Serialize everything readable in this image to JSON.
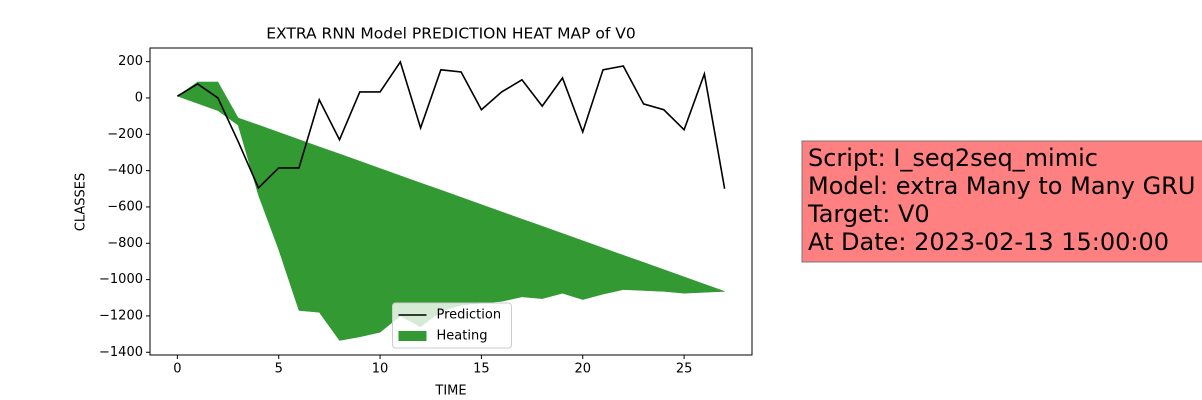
{
  "chart_data": {
    "type": "line_band",
    "title": "EXTRA RNN Model PREDICTION HEAT MAP of V0",
    "xlabel": "TIME",
    "ylabel": "CLASSES",
    "x": [
      0,
      1,
      2,
      3,
      4,
      5,
      6,
      7,
      8,
      9,
      10,
      11,
      12,
      13,
      14,
      15,
      16,
      17,
      18,
      19,
      20,
      21,
      22,
      23,
      24,
      25,
      26,
      27
    ],
    "series": [
      {
        "name": "Prediction",
        "color": "#000000",
        "values": [
          10,
          77,
          0,
          -240,
          -495,
          -385,
          -385,
          -10,
          -230,
          33,
          33,
          198,
          -165,
          155,
          143,
          -65,
          33,
          100,
          -45,
          110,
          -187,
          155,
          176,
          -33,
          -65,
          -175,
          132,
          -500
        ]
      },
      {
        "name": "Heating",
        "color": "#339933",
        "upper": [
          10,
          88,
          88,
          -110,
          -149,
          -189,
          -229,
          -269,
          -308,
          -348,
          -388,
          -428,
          -468,
          -507,
          -547,
          -587,
          -627,
          -667,
          -706,
          -746,
          -786,
          -826,
          -866,
          -905,
          -945,
          -985,
          -1025,
          -1065
        ],
        "lower": [
          10,
          -30,
          -70,
          -150,
          -535,
          -835,
          -1170,
          -1180,
          -1335,
          -1315,
          -1290,
          -1200,
          -1260,
          -1175,
          -1140,
          -1130,
          -1120,
          -1095,
          -1105,
          -1075,
          -1110,
          -1080,
          -1055,
          -1060,
          -1065,
          -1075,
          -1070,
          -1065
        ]
      }
    ],
    "xlim": [
      -1.35,
      28.35
    ],
    "xticks": [
      0,
      5,
      10,
      15,
      20,
      25
    ],
    "ylim": [
      -1415,
      275
    ],
    "yticks": [
      {
        "value": -1400,
        "label": "−1400"
      },
      {
        "value": -1200,
        "label": "−1200"
      },
      {
        "value": -1000,
        "label": "−1000"
      },
      {
        "value": -800,
        "label": "−800"
      },
      {
        "value": -600,
        "label": "−600"
      },
      {
        "value": -400,
        "label": "−400"
      },
      {
        "value": -200,
        "label": "−200"
      },
      0,
      200
    ],
    "legend": "lower center",
    "annotation": {
      "lines": [
        "Script: I_seq2seq_mimic",
        "Model: extra Many to Many GRU",
        "Target: V0",
        "At Date: 2023-02-13 15:00:00"
      ],
      "background": "#ff8080"
    }
  }
}
